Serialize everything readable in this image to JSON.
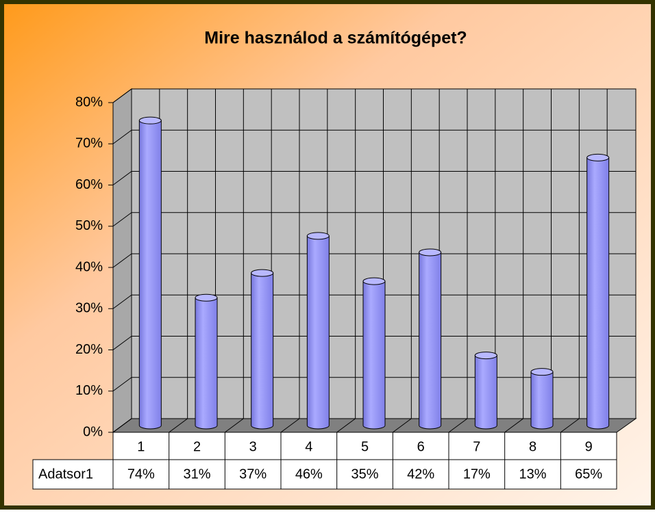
{
  "chart_data": {
    "type": "bar",
    "title": "Mire használod a számítógépet?",
    "categories": [
      "1",
      "2",
      "3",
      "4",
      "5",
      "6",
      "7",
      "8",
      "9"
    ],
    "series": [
      {
        "name": "Adatsor1",
        "color": "#9999ff",
        "values": [
          74,
          31,
          37,
          46,
          35,
          42,
          17,
          13,
          65
        ],
        "value_labels": [
          "74%",
          "31%",
          "37%",
          "46%",
          "35%",
          "42%",
          "17%",
          "13%",
          "65%"
        ]
      }
    ],
    "ylim": [
      0,
      80
    ],
    "yticks": [
      {
        "value": 0,
        "label": "0%"
      },
      {
        "value": 10,
        "label": "10%"
      },
      {
        "value": 20,
        "label": "20%"
      },
      {
        "value": 30,
        "label": "30%"
      },
      {
        "value": 40,
        "label": "40%"
      },
      {
        "value": 50,
        "label": "50%"
      },
      {
        "value": 60,
        "label": "60%"
      },
      {
        "value": 70,
        "label": "70%"
      },
      {
        "value": 80,
        "label": "80%"
      }
    ],
    "grid": true
  }
}
